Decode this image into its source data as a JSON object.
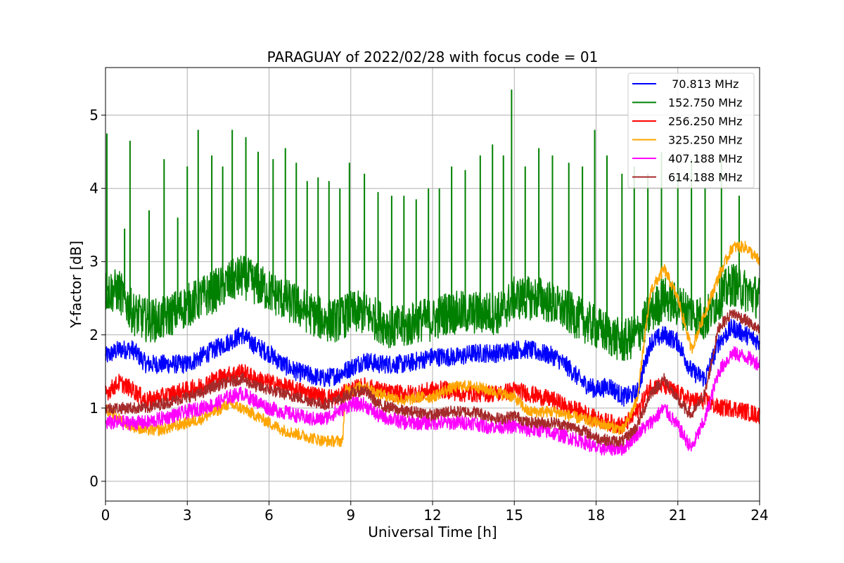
{
  "chart_data": {
    "type": "line",
    "title": "PARAGUAY of 2022/02/28 with focus code = 01",
    "xlabel": "Universal Time [h]",
    "ylabel": "Y-factor [dB]",
    "xlim": [
      0,
      24
    ],
    "ylim": [
      -0.27,
      5.65
    ],
    "xticks": [
      0,
      3,
      6,
      9,
      12,
      15,
      18,
      21,
      24
    ],
    "yticks": [
      0,
      1,
      2,
      3,
      4,
      5
    ],
    "grid": true,
    "legend_position": "top-right",
    "series": [
      {
        "name": " 70.813 MHz",
        "color": "#0000ff",
        "x": [
          0,
          0.5,
          1,
          1.5,
          2,
          2.5,
          3,
          3.5,
          4,
          4.5,
          5,
          5.5,
          6,
          6.5,
          7,
          7.5,
          8,
          8.5,
          9,
          9.5,
          10,
          10.5,
          11,
          11.5,
          12,
          12.5,
          13,
          13.5,
          14,
          14.5,
          15,
          15.5,
          16,
          16.5,
          17,
          17.5,
          18,
          18.5,
          19,
          19.5,
          20,
          20.5,
          21,
          21.5,
          22,
          22.5,
          23,
          23.5,
          24
        ],
        "values": [
          1.7,
          1.8,
          1.8,
          1.6,
          1.6,
          1.6,
          1.6,
          1.7,
          1.8,
          1.9,
          2.0,
          1.85,
          1.75,
          1.6,
          1.5,
          1.45,
          1.4,
          1.45,
          1.55,
          1.65,
          1.6,
          1.6,
          1.6,
          1.65,
          1.7,
          1.7,
          1.7,
          1.75,
          1.75,
          1.75,
          1.8,
          1.8,
          1.75,
          1.7,
          1.55,
          1.35,
          1.25,
          1.3,
          1.15,
          1.2,
          1.9,
          2.0,
          1.9,
          1.5,
          1.4,
          1.9,
          2.1,
          2.0,
          1.9
        ],
        "noise": 0.13
      },
      {
        "name": "152.750 MHz",
        "color": "#008000",
        "x": [
          0,
          0.5,
          1,
          1.5,
          2,
          2.5,
          3,
          3.5,
          4,
          4.5,
          5,
          5.5,
          6,
          6.5,
          7,
          7.5,
          8,
          8.5,
          9,
          9.5,
          10,
          10.5,
          11,
          11.5,
          12,
          12.5,
          13,
          13.5,
          14,
          14.5,
          15,
          15.5,
          16,
          16.5,
          17,
          17.5,
          18,
          18.5,
          19,
          19.5,
          20,
          20.5,
          21,
          21.5,
          22,
          22.5,
          23,
          23.5,
          24
        ],
        "values": [
          2.6,
          2.6,
          2.3,
          2.2,
          2.2,
          2.3,
          2.4,
          2.5,
          2.6,
          2.7,
          2.8,
          2.7,
          2.6,
          2.5,
          2.4,
          2.3,
          2.2,
          2.2,
          2.3,
          2.3,
          2.2,
          2.1,
          2.1,
          2.2,
          2.2,
          2.3,
          2.3,
          2.3,
          2.3,
          2.3,
          2.5,
          2.5,
          2.5,
          2.4,
          2.3,
          2.2,
          2.1,
          2.0,
          1.9,
          2.0,
          2.3,
          2.5,
          2.4,
          2.3,
          2.2,
          2.5,
          2.7,
          2.6,
          2.5
        ],
        "noise": 0.3,
        "spikes": [
          [
            0.05,
            4.75
          ],
          [
            0.7,
            3.45
          ],
          [
            0.9,
            4.65
          ],
          [
            1.6,
            3.7
          ],
          [
            2.15,
            4.4
          ],
          [
            2.65,
            3.6
          ],
          [
            3.0,
            4.3
          ],
          [
            3.4,
            4.8
          ],
          [
            3.9,
            4.45
          ],
          [
            4.3,
            4.3
          ],
          [
            4.65,
            4.8
          ],
          [
            5.15,
            4.7
          ],
          [
            5.6,
            4.5
          ],
          [
            6.15,
            4.4
          ],
          [
            6.6,
            4.55
          ],
          [
            7.0,
            4.35
          ],
          [
            7.4,
            4.1
          ],
          [
            7.8,
            4.15
          ],
          [
            8.2,
            4.1
          ],
          [
            8.6,
            4.0
          ],
          [
            8.95,
            4.35
          ],
          [
            9.5,
            4.2
          ],
          [
            10.0,
            3.95
          ],
          [
            10.5,
            3.9
          ],
          [
            10.95,
            3.9
          ],
          [
            11.4,
            3.85
          ],
          [
            11.85,
            4.0
          ],
          [
            12.25,
            4.0
          ],
          [
            12.7,
            4.3
          ],
          [
            13.2,
            4.25
          ],
          [
            13.75,
            4.45
          ],
          [
            14.2,
            4.6
          ],
          [
            14.6,
            4.45
          ],
          [
            14.9,
            5.35
          ],
          [
            15.4,
            4.3
          ],
          [
            15.9,
            4.55
          ],
          [
            16.4,
            4.45
          ],
          [
            17.0,
            4.35
          ],
          [
            17.5,
            4.3
          ],
          [
            17.95,
            4.8
          ],
          [
            18.4,
            4.45
          ],
          [
            18.95,
            4.2
          ],
          [
            19.4,
            4.3
          ],
          [
            19.9,
            4.2
          ],
          [
            20.4,
            4.5
          ],
          [
            21.0,
            4.2
          ],
          [
            21.5,
            4.4
          ],
          [
            22.0,
            4.0
          ],
          [
            22.6,
            4.4
          ],
          [
            23.25,
            3.9
          ]
        ]
      },
      {
        "name": "256.250 MHz",
        "color": "#ff0000",
        "x": [
          0,
          0.5,
          1,
          1.5,
          2,
          2.5,
          3,
          3.5,
          4,
          4.5,
          5,
          5.5,
          6,
          6.5,
          7,
          7.5,
          8,
          8.5,
          9,
          9.5,
          10,
          10.5,
          11,
          11.5,
          12,
          12.5,
          13,
          13.5,
          14,
          14.5,
          15,
          15.5,
          16,
          16.5,
          17,
          17.5,
          18,
          18.5,
          19,
          19.5,
          20,
          20.5,
          21,
          21.5,
          22,
          22.5,
          23,
          23.5,
          24
        ],
        "values": [
          1.2,
          1.35,
          1.25,
          1.1,
          1.15,
          1.2,
          1.25,
          1.3,
          1.4,
          1.45,
          1.5,
          1.4,
          1.35,
          1.3,
          1.25,
          1.2,
          1.15,
          1.15,
          1.25,
          1.3,
          1.25,
          1.2,
          1.2,
          1.2,
          1.25,
          1.25,
          1.2,
          1.2,
          1.2,
          1.2,
          1.25,
          1.2,
          1.15,
          1.1,
          1.0,
          0.95,
          0.85,
          0.8,
          0.75,
          0.95,
          1.3,
          1.3,
          1.2,
          1.1,
          1.1,
          1.0,
          1.0,
          0.95,
          0.9
        ],
        "noise": 0.12
      },
      {
        "name": "325.250 MHz",
        "color": "#ffa500",
        "x": [
          0,
          0.5,
          1,
          1.5,
          2,
          2.5,
          3,
          3.5,
          4,
          4.5,
          5,
          5.5,
          6,
          6.5,
          7,
          7.5,
          8,
          8.5,
          8.7,
          8.8,
          9,
          9.5,
          10,
          10.5,
          11,
          11.5,
          12,
          12.5,
          13,
          13.5,
          14,
          14.5,
          15,
          15.5,
          16,
          16.5,
          17,
          17.5,
          18,
          18.5,
          19,
          19.5,
          20,
          20.5,
          21,
          21.5,
          22,
          22.5,
          23,
          23.5,
          24
        ],
        "values": [
          1.0,
          0.85,
          0.75,
          0.7,
          0.7,
          0.75,
          0.8,
          0.85,
          0.95,
          1.05,
          1.0,
          0.9,
          0.8,
          0.7,
          0.65,
          0.6,
          0.55,
          0.55,
          0.55,
          1.25,
          1.25,
          1.3,
          1.2,
          1.15,
          1.1,
          1.15,
          1.15,
          1.25,
          1.3,
          1.3,
          1.25,
          1.2,
          1.15,
          0.95,
          0.95,
          0.95,
          0.9,
          0.85,
          0.8,
          0.75,
          0.7,
          1.1,
          2.6,
          2.9,
          2.5,
          1.8,
          2.3,
          2.8,
          3.2,
          3.2,
          3.0
        ],
        "noise": 0.08
      },
      {
        "name": "407.188 MHz",
        "color": "#ff00ff",
        "x": [
          0,
          0.5,
          1,
          1.5,
          2,
          2.5,
          3,
          3.5,
          4,
          4.5,
          5,
          5.5,
          6,
          6.5,
          7,
          7.5,
          8,
          8.5,
          9,
          9.5,
          10,
          10.5,
          11,
          11.5,
          12,
          12.5,
          13,
          13.5,
          14,
          14.5,
          15,
          15.5,
          16,
          16.5,
          17,
          17.5,
          18,
          18.5,
          19,
          19.5,
          20,
          20.5,
          21,
          21.5,
          22,
          22.5,
          23,
          23.5,
          24
        ],
        "values": [
          0.8,
          0.8,
          0.8,
          0.8,
          0.85,
          0.9,
          0.95,
          1.0,
          1.05,
          1.15,
          1.2,
          1.1,
          1.0,
          0.95,
          0.9,
          0.85,
          0.85,
          0.95,
          1.05,
          1.05,
          0.9,
          0.85,
          0.8,
          0.8,
          0.8,
          0.8,
          0.8,
          0.8,
          0.75,
          0.75,
          0.75,
          0.7,
          0.7,
          0.65,
          0.6,
          0.55,
          0.45,
          0.45,
          0.45,
          0.65,
          0.8,
          1.0,
          0.75,
          0.45,
          0.85,
          1.5,
          1.75,
          1.7,
          1.6
        ],
        "noise": 0.1
      },
      {
        "name": "614.188 MHz",
        "color": "#a52a2a",
        "x": [
          0,
          0.5,
          1,
          1.5,
          2,
          2.5,
          3,
          3.5,
          4,
          4.5,
          5,
          5.5,
          6,
          6.5,
          7,
          7.5,
          8,
          8.5,
          9,
          9.5,
          10,
          10.5,
          11,
          11.5,
          12,
          12.5,
          13,
          13.5,
          14,
          14.5,
          15,
          15.5,
          16,
          16.5,
          17,
          17.5,
          18,
          18.5,
          19,
          19.5,
          20,
          20.5,
          21,
          21.5,
          22,
          22.5,
          23,
          23.5,
          24
        ],
        "values": [
          1.0,
          1.0,
          1.0,
          1.0,
          1.05,
          1.1,
          1.15,
          1.2,
          1.3,
          1.35,
          1.4,
          1.3,
          1.25,
          1.2,
          1.15,
          1.1,
          1.05,
          1.1,
          1.2,
          1.25,
          1.05,
          1.0,
          0.95,
          0.95,
          0.9,
          0.95,
          0.95,
          0.95,
          0.9,
          0.85,
          0.9,
          0.8,
          0.8,
          0.8,
          0.75,
          0.7,
          0.6,
          0.55,
          0.55,
          0.75,
          1.2,
          1.4,
          1.1,
          0.9,
          1.2,
          2.1,
          2.3,
          2.2,
          2.05
        ],
        "noise": 0.08
      }
    ]
  }
}
